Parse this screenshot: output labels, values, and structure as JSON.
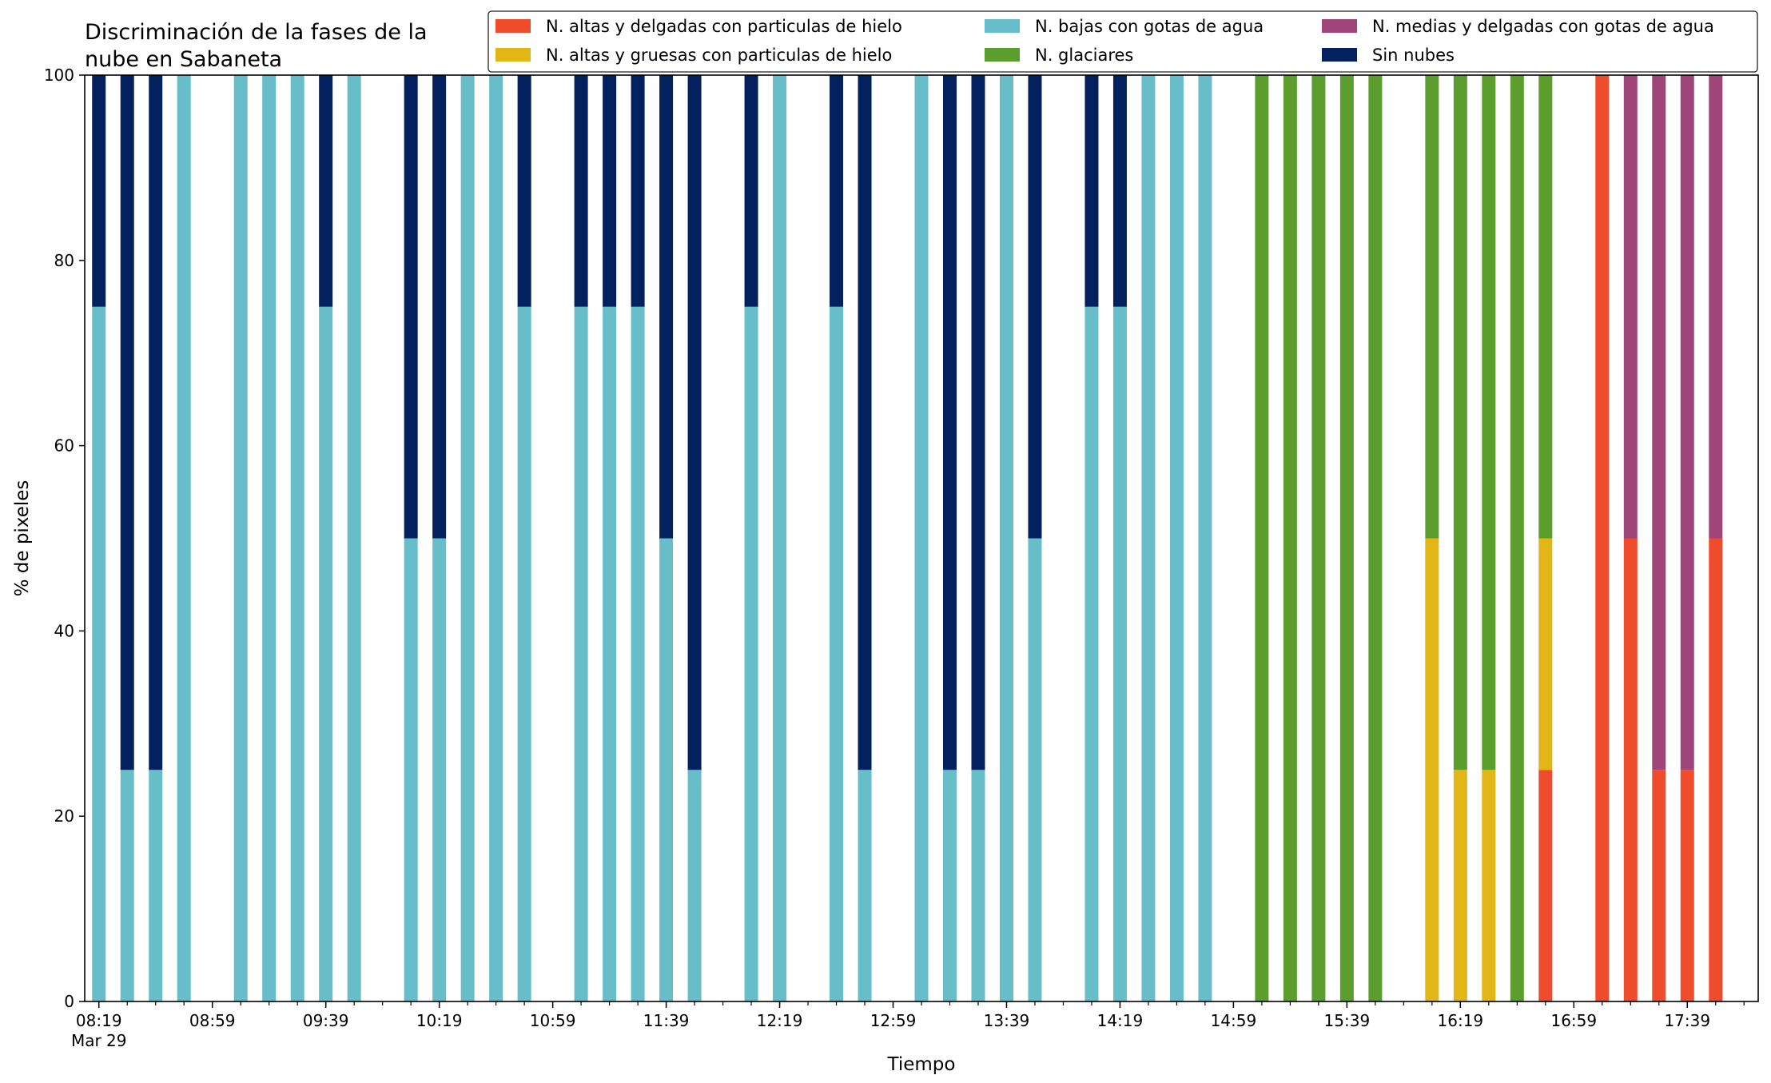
{
  "chart_data": {
    "type": "bar",
    "stacked": true,
    "title": "Discriminación de la fases de la\nnube en Sabaneta",
    "xlabel": "Tiempo",
    "ylabel": "% de pixeles",
    "ylim": [
      0,
      100
    ],
    "yticks": [
      0,
      20,
      40,
      60,
      80,
      100
    ],
    "grid": false,
    "legend_position": "top-right",
    "x_axis_range": [
      "08:14",
      "18:04"
    ],
    "x_tick_labels": [
      {
        "time": "08:19",
        "label": "08:19",
        "sublabel": "Mar 29"
      },
      {
        "time": "08:59",
        "label": "08:59"
      },
      {
        "time": "09:39",
        "label": "09:39"
      },
      {
        "time": "10:19",
        "label": "10:19"
      },
      {
        "time": "10:59",
        "label": "10:59"
      },
      {
        "time": "11:39",
        "label": "11:39"
      },
      {
        "time": "12:19",
        "label": "12:19"
      },
      {
        "time": "12:59",
        "label": "12:59"
      },
      {
        "time": "13:39",
        "label": "13:39"
      },
      {
        "time": "14:19",
        "label": "14:19"
      },
      {
        "time": "14:59",
        "label": "14:59"
      },
      {
        "time": "15:39",
        "label": "15:39"
      },
      {
        "time": "16:19",
        "label": "16:19"
      },
      {
        "time": "16:59",
        "label": "16:59"
      },
      {
        "time": "17:39",
        "label": "17:39"
      }
    ],
    "x_minor_tick_interval_minutes": 10,
    "bar_times": [
      "08:19",
      "08:29",
      "08:39",
      "08:49",
      "09:09",
      "09:19",
      "09:29",
      "09:39",
      "09:49",
      "10:09",
      "10:19",
      "10:29",
      "10:39",
      "10:49",
      "11:09",
      "11:19",
      "11:29",
      "11:39",
      "11:49",
      "12:09",
      "12:19",
      "12:39",
      "12:49",
      "13:09",
      "13:19",
      "13:29",
      "13:39",
      "13:49",
      "14:09",
      "14:19",
      "14:29",
      "14:39",
      "14:49",
      "15:09",
      "15:19",
      "15:29",
      "15:39",
      "15:49",
      "16:09",
      "16:19",
      "16:29",
      "16:39",
      "16:49",
      "17:09",
      "17:19",
      "17:29",
      "17:39",
      "17:49"
    ],
    "series": [
      {
        "name": "N. altas y delgadas con particulas de hielo",
        "color": "#EE4C2C",
        "values": [
          0,
          0,
          0,
          0,
          0,
          0,
          0,
          0,
          0,
          0,
          0,
          0,
          0,
          0,
          0,
          0,
          0,
          0,
          0,
          0,
          0,
          0,
          0,
          0,
          0,
          0,
          0,
          0,
          0,
          0,
          0,
          0,
          0,
          0,
          0,
          0,
          0,
          0,
          0,
          0,
          0,
          0,
          25,
          100,
          50,
          25,
          25,
          50
        ]
      },
      {
        "name": "N. altas y gruesas con particulas de hielo",
        "color": "#E2B616",
        "values": [
          0,
          0,
          0,
          0,
          0,
          0,
          0,
          0,
          0,
          0,
          0,
          0,
          0,
          0,
          0,
          0,
          0,
          0,
          0,
          0,
          0,
          0,
          0,
          0,
          0,
          0,
          0,
          0,
          0,
          0,
          0,
          0,
          0,
          0,
          0,
          0,
          0,
          0,
          50,
          25,
          25,
          0,
          25,
          0,
          0,
          0,
          0,
          0
        ]
      },
      {
        "name": "N. bajas con gotas de agua",
        "color": "#67BEC9",
        "values": [
          75,
          25,
          25,
          100,
          100,
          100,
          100,
          75,
          100,
          50,
          50,
          100,
          100,
          75,
          75,
          75,
          75,
          50,
          25,
          75,
          100,
          75,
          25,
          100,
          25,
          25,
          100,
          50,
          75,
          75,
          100,
          100,
          100,
          0,
          0,
          0,
          0,
          0,
          0,
          0,
          0,
          0,
          0,
          0,
          0,
          0,
          0,
          0
        ]
      },
      {
        "name": "N. glaciares",
        "color": "#5C9E2E",
        "values": [
          0,
          0,
          0,
          0,
          0,
          0,
          0,
          0,
          0,
          0,
          0,
          0,
          0,
          0,
          0,
          0,
          0,
          0,
          0,
          0,
          0,
          0,
          0,
          0,
          0,
          0,
          0,
          0,
          0,
          0,
          0,
          0,
          0,
          100,
          100,
          100,
          100,
          100,
          50,
          75,
          75,
          100,
          50,
          0,
          0,
          0,
          0,
          0
        ]
      },
      {
        "name": "N. medias y delgadas con gotas de agua",
        "color": "#A0457A",
        "values": [
          0,
          0,
          0,
          0,
          0,
          0,
          0,
          0,
          0,
          0,
          0,
          0,
          0,
          0,
          0,
          0,
          0,
          0,
          0,
          0,
          0,
          0,
          0,
          0,
          0,
          0,
          0,
          0,
          0,
          0,
          0,
          0,
          0,
          0,
          0,
          0,
          0,
          0,
          0,
          0,
          0,
          0,
          0,
          0,
          50,
          75,
          75,
          50
        ]
      },
      {
        "name": "Sin nubes",
        "color": "#03205F",
        "values": [
          25,
          75,
          75,
          0,
          0,
          0,
          0,
          25,
          0,
          50,
          50,
          0,
          0,
          25,
          25,
          25,
          25,
          50,
          75,
          25,
          0,
          25,
          75,
          0,
          75,
          75,
          0,
          50,
          25,
          25,
          0,
          0,
          0,
          0,
          0,
          0,
          0,
          0,
          0,
          0,
          0,
          0,
          0,
          0,
          0,
          0,
          0,
          0
        ]
      }
    ]
  }
}
